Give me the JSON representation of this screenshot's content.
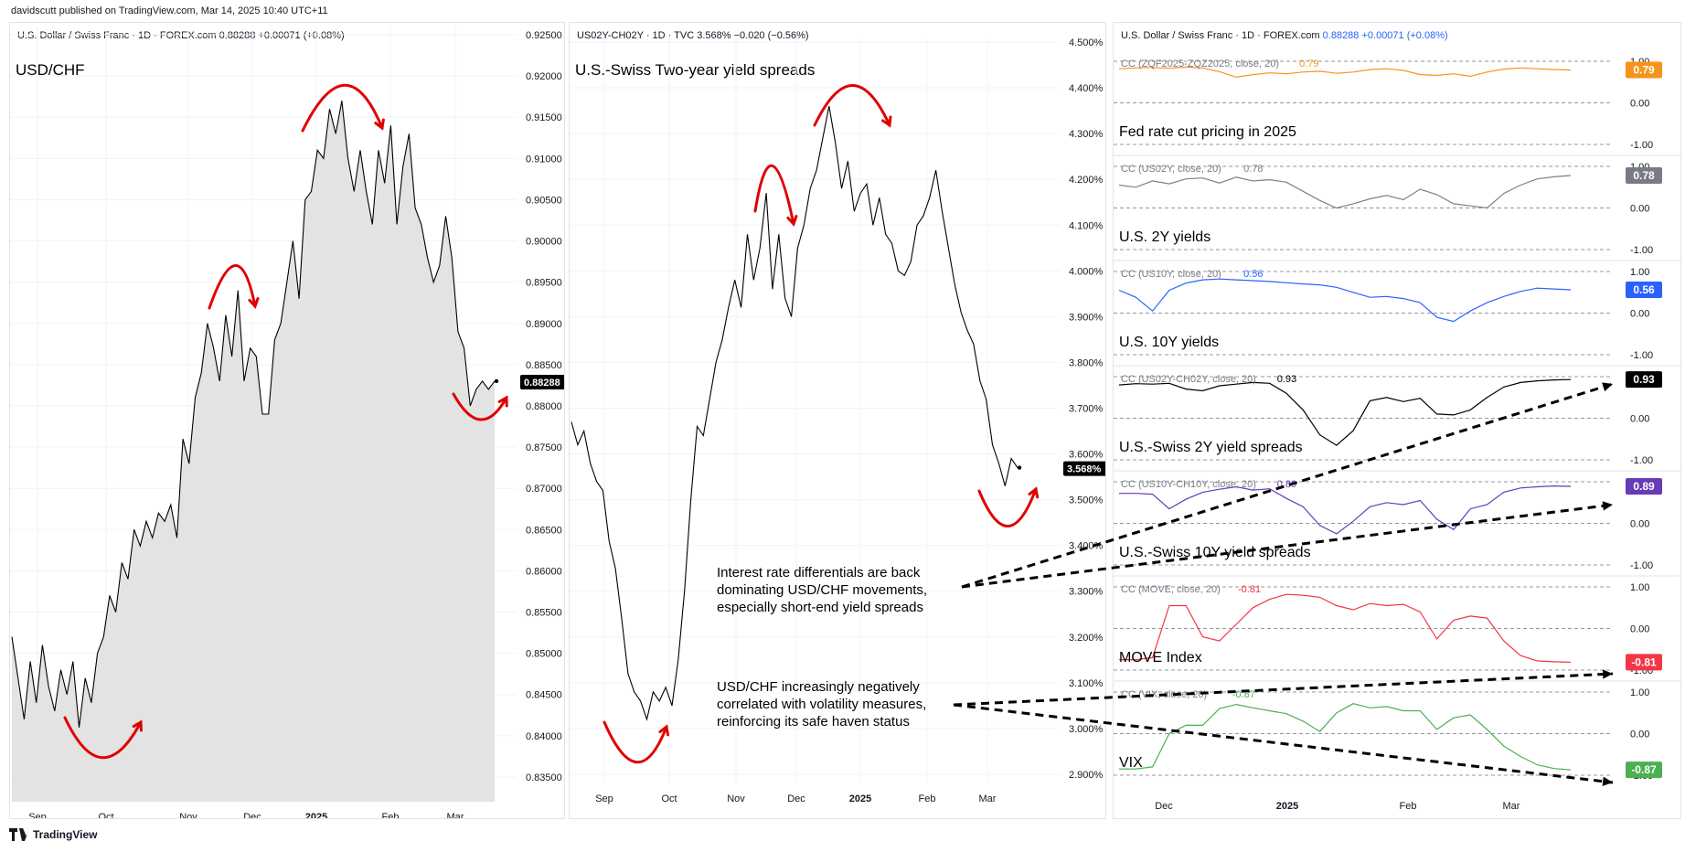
{
  "header": {
    "publish_line": "davidscutt published on TradingView.com, Mar 14, 2025 10:40 UTC+11"
  },
  "footer": {
    "brand": "TradingView"
  },
  "colors": {
    "grid": "#f0f3fa",
    "area_fill": "#e3e3e3",
    "arrow_red": "#e00000",
    "orange": "#f7931a",
    "gray": "#808080",
    "blue": "#2962ff",
    "black": "#000000",
    "purple": "#673ab7",
    "red": "#f23645",
    "green": "#4caf50"
  },
  "panels": {
    "usdchf": {
      "header": "U.S. Dollar / Swiss Franc · 1D · FOREX.com 0.88288 +0.00071 (+0.08%)",
      "big_label": "USD/CHF",
      "price_tag": "0.88288"
    },
    "spread": {
      "header": "US02Y-CH02Y · 1D · TVC 3.568% −0.020 (−0.56%)",
      "big_label": "U.S.-Swiss Two-year yield spreads",
      "price_tag": "3.568%"
    },
    "corr": {
      "header_left": "U.S. Dollar / Swiss Franc · 1D · FOREX.com",
      "header_right": "0.88288 +0.00071 (+0.08%)"
    }
  },
  "annotations": {
    "rates": "Interest rate differentials are back dominating USD/CHF movements, especially short-end yield spreads",
    "vol": "USD/CHF increasingly negatively correlated with volatility measures, reinforcing its safe haven status"
  },
  "chart_data": [
    {
      "type": "area",
      "title": "USD/CHF",
      "xlabel": "",
      "ylabel": "",
      "ylim": [
        0.832,
        0.926
      ],
      "x_ticks": [
        "Sep",
        "Oct",
        "Nov",
        "Dec",
        "2025",
        "Feb",
        "Mar"
      ],
      "y_ticks": [
        "0.92500",
        "0.92000",
        "0.91500",
        "0.91000",
        "0.90500",
        "0.90000",
        "0.89500",
        "0.89000",
        "0.88500",
        "0.88000",
        "0.87500",
        "0.87000",
        "0.86500",
        "0.86000",
        "0.85500",
        "0.85000",
        "0.84500",
        "0.84000",
        "0.83500"
      ],
      "last_value": 0.88288,
      "series": [
        {
          "values": [
            0.852,
            0.847,
            0.842,
            0.849,
            0.844,
            0.851,
            0.846,
            0.843,
            0.848,
            0.845,
            0.849,
            0.841,
            0.847,
            0.844,
            0.85,
            0.852,
            0.857,
            0.855,
            0.861,
            0.859,
            0.865,
            0.863,
            0.866,
            0.864,
            0.867,
            0.866,
            0.868,
            0.864,
            0.876,
            0.873,
            0.881,
            0.884,
            0.89,
            0.887,
            0.883,
            0.891,
            0.886,
            0.894,
            0.883,
            0.887,
            0.886,
            0.879,
            0.879,
            0.888,
            0.89,
            0.895,
            0.9,
            0.893,
            0.905,
            0.906,
            0.911,
            0.91,
            0.916,
            0.913,
            0.917,
            0.91,
            0.906,
            0.911,
            0.906,
            0.902,
            0.911,
            0.907,
            0.914,
            0.902,
            0.909,
            0.913,
            0.904,
            0.902,
            0.898,
            0.895,
            0.897,
            0.903,
            0.898,
            0.889,
            0.887,
            0.88,
            0.882,
            0.883,
            0.882,
            0.883
          ]
        }
      ]
    },
    {
      "type": "line",
      "title": "U.S.-Swiss Two-year yield spreads",
      "xlabel": "",
      "ylabel": "",
      "ylim": [
        2.88,
        4.51
      ],
      "x_ticks": [
        "Sep",
        "Oct",
        "Nov",
        "Dec",
        "2025",
        "Feb",
        "Mar"
      ],
      "y_ticks": [
        "4.500%",
        "4.400%",
        "4.300%",
        "4.200%",
        "4.100%",
        "4.000%",
        "3.900%",
        "3.800%",
        "3.700%",
        "3.600%",
        "3.500%",
        "3.400%",
        "3.300%",
        "3.200%",
        "3.100%",
        "3.000%",
        "2.900%"
      ],
      "last_value": 3.568,
      "series": [
        {
          "values": [
            3.67,
            3.62,
            3.65,
            3.58,
            3.54,
            3.52,
            3.41,
            3.35,
            3.24,
            3.12,
            3.08,
            3.06,
            3.02,
            3.08,
            3.06,
            3.09,
            3.05,
            3.15,
            3.3,
            3.5,
            3.66,
            3.64,
            3.72,
            3.8,
            3.85,
            3.92,
            3.98,
            3.92,
            4.08,
            3.98,
            4.05,
            4.17,
            3.96,
            4.08,
            3.94,
            3.9,
            4.05,
            4.1,
            4.18,
            4.22,
            4.29,
            4.36,
            4.28,
            4.18,
            4.24,
            4.13,
            4.17,
            4.19,
            4.1,
            4.16,
            4.08,
            4.06,
            4.0,
            3.99,
            4.02,
            4.1,
            4.12,
            4.16,
            4.22,
            4.13,
            4.05,
            3.97,
            3.91,
            3.87,
            3.84,
            3.76,
            3.72,
            3.62,
            3.58,
            3.53,
            3.59,
            3.57
          ]
        }
      ]
    },
    {
      "type": "line",
      "title": "Fed rate cut pricing in 2025",
      "series_name": "CC (ZQF2025-ZQZ2025, close, 20)",
      "ylim": [
        -1,
        1
      ],
      "y_ticks": [
        "1.00",
        "0.00",
        "-1.00"
      ],
      "last_value": 0.79,
      "series": [
        {
          "values": [
            0.82,
            0.84,
            0.85,
            0.83,
            0.86,
            0.84,
            0.75,
            0.62,
            0.68,
            0.72,
            0.7,
            0.74,
            0.76,
            0.71,
            0.74,
            0.8,
            0.82,
            0.78,
            0.68,
            0.66,
            0.7,
            0.64,
            0.74,
            0.81,
            0.84,
            0.82,
            0.8,
            0.79
          ]
        }
      ]
    },
    {
      "type": "line",
      "title": "U.S. 2Y yields",
      "series_name": "CC (US02Y, close, 20)",
      "ylim": [
        -1,
        1
      ],
      "y_ticks": [
        "1.00",
        "0.00",
        "-1.00"
      ],
      "last_value": 0.78,
      "series": [
        {
          "values": [
            0.55,
            0.5,
            0.65,
            0.58,
            0.7,
            0.72,
            0.6,
            0.74,
            0.65,
            0.68,
            0.62,
            0.4,
            0.18,
            0.0,
            0.1,
            0.22,
            0.3,
            0.2,
            0.45,
            0.32,
            0.1,
            0.05,
            0.0,
            0.35,
            0.55,
            0.7,
            0.75,
            0.78
          ]
        }
      ]
    },
    {
      "type": "line",
      "title": "U.S. 10Y yields",
      "series_name": "CC (US10Y, close, 20)",
      "ylim": [
        -1,
        1
      ],
      "y_ticks": [
        "1.00",
        "0.00",
        "-1.00"
      ],
      "last_value": 0.56,
      "series": [
        {
          "values": [
            0.55,
            0.38,
            0.05,
            0.55,
            0.72,
            0.8,
            0.82,
            0.8,
            0.78,
            0.76,
            0.73,
            0.7,
            0.68,
            0.62,
            0.5,
            0.38,
            0.4,
            0.35,
            0.25,
            -0.1,
            -0.2,
            0.05,
            0.25,
            0.4,
            0.52,
            0.6,
            0.58,
            0.56
          ]
        }
      ]
    },
    {
      "type": "line",
      "title": "U.S.-Swiss 2Y yield spreads",
      "series_name": "CC (US02Y-CH02Y, close, 20)",
      "ylim": [
        -1,
        1
      ],
      "y_ticks": [
        "1.00",
        "0.00",
        "-1.00"
      ],
      "last_value": 0.93,
      "series": [
        {
          "values": [
            0.8,
            0.83,
            0.82,
            0.84,
            0.7,
            0.66,
            0.78,
            0.82,
            0.86,
            0.84,
            0.6,
            0.2,
            -0.4,
            -0.65,
            -0.3,
            0.42,
            0.5,
            0.4,
            0.48,
            0.1,
            0.08,
            0.2,
            0.5,
            0.75,
            0.86,
            0.9,
            0.92,
            0.93
          ]
        }
      ]
    },
    {
      "type": "line",
      "title": "U.S.-Swiss 10Y yield spreads",
      "series_name": "CC (US10Y-CH10Y, close, 20)",
      "ylim": [
        -1,
        1
      ],
      "y_ticks": [
        "1.00",
        "0.00",
        "-1.00"
      ],
      "last_value": 0.89,
      "series": [
        {
          "values": [
            0.72,
            0.72,
            0.7,
            0.35,
            0.58,
            0.75,
            0.82,
            0.88,
            0.8,
            0.83,
            0.6,
            0.4,
            -0.05,
            -0.25,
            0.05,
            0.4,
            0.5,
            0.45,
            0.55,
            0.1,
            -0.15,
            0.35,
            0.45,
            0.75,
            0.85,
            0.88,
            0.9,
            0.89
          ]
        }
      ]
    },
    {
      "type": "line",
      "title": "MOVE Index",
      "series_name": "CC (MOVE, close, 20)",
      "ylim": [
        -1,
        1
      ],
      "y_ticks": [
        "1.00",
        "0.00",
        "-1.00"
      ],
      "last_value": -0.81,
      "series": [
        {
          "values": [
            -0.75,
            -0.75,
            -0.7,
            0.55,
            0.55,
            -0.2,
            -0.3,
            0.1,
            0.5,
            0.7,
            0.82,
            0.8,
            0.75,
            0.55,
            0.45,
            0.6,
            0.55,
            0.58,
            0.4,
            -0.25,
            0.2,
            0.3,
            0.25,
            -0.3,
            -0.65,
            -0.78,
            -0.8,
            -0.81
          ]
        }
      ]
    },
    {
      "type": "line",
      "title": "VIX",
      "series_name": "CC (VIX, close, 20)",
      "ylim": [
        -1,
        1
      ],
      "y_ticks": [
        "1.00",
        "0.00",
        "-1.00"
      ],
      "last_value": -0.87,
      "series": [
        {
          "values": [
            -0.85,
            -0.85,
            -0.8,
            0.0,
            0.2,
            0.2,
            0.6,
            0.7,
            0.62,
            0.55,
            0.48,
            0.3,
            0.05,
            0.5,
            0.72,
            0.62,
            0.65,
            0.55,
            0.55,
            0.1,
            0.38,
            0.45,
            0.1,
            -0.3,
            -0.55,
            -0.75,
            -0.84,
            -0.87
          ]
        }
      ]
    }
  ],
  "corr_x_ticks": [
    "Dec",
    "2025",
    "Feb",
    "Mar"
  ]
}
